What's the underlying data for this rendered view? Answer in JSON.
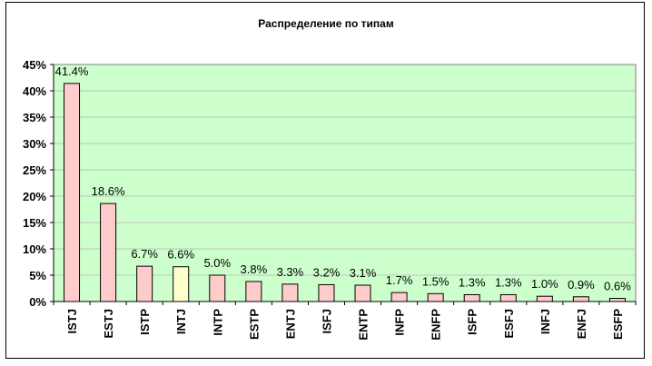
{
  "chart_data": {
    "type": "bar",
    "title": "Распределение по типам",
    "categories": [
      "ISTJ",
      "ESTJ",
      "ISTP",
      "INTJ",
      "INTP",
      "ESTP",
      "ENTJ",
      "ISFJ",
      "ENTP",
      "INFP",
      "ENFP",
      "ISFP",
      "ESFJ",
      "INFJ",
      "ENFJ",
      "ESFP"
    ],
    "values": [
      41.4,
      18.6,
      6.7,
      6.6,
      5.0,
      3.8,
      3.3,
      3.2,
      3.1,
      1.7,
      1.5,
      1.3,
      1.3,
      1.0,
      0.9,
      0.6
    ],
    "data_labels": [
      "41.4%",
      "18.6%",
      "6.7%",
      "6.6%",
      "5.0%",
      "3.8%",
      "3.3%",
      "3.2%",
      "3.1%",
      "1.7%",
      "1.5%",
      "1.3%",
      "1.3%",
      "1.0%",
      "0.9%",
      "0.6%"
    ],
    "ylim": [
      0,
      45
    ],
    "yticks": [
      "0%",
      "5%",
      "10%",
      "15%",
      "20%",
      "25%",
      "30%",
      "35%",
      "40%",
      "45%"
    ],
    "grid": true,
    "legend": "none",
    "colors": {
      "plot_bg": "#ccffcc",
      "bar": "#ffcccc",
      "highlight_bar": "#ffffcc",
      "highlight_category": "INTJ",
      "grid": "#c0c0c0"
    }
  }
}
